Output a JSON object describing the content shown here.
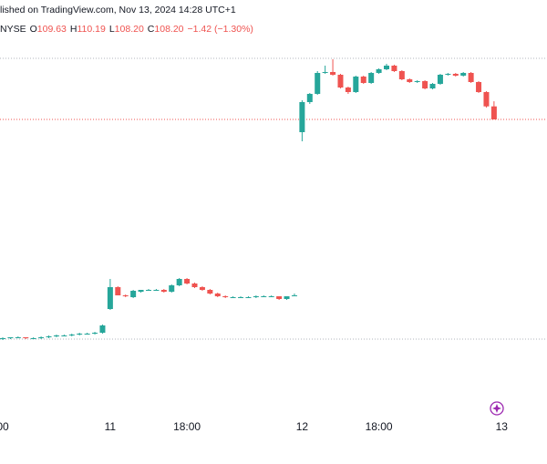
{
  "chart_data": {
    "type": "candlestick",
    "title": "lished on TradingView.com, Nov 13, 2024 14:28 UTC+1",
    "exchange": "NYSE",
    "legend_labels": [
      "O",
      "H",
      "L",
      "C"
    ],
    "legend_values": [
      "109.63",
      "110.19",
      "108.20",
      "108.20"
    ],
    "change": "−1.42 (−1.30%)",
    "up_color": "#26a69a",
    "down_color": "#ef5350",
    "ylim": [
      75.8,
      121.3
    ],
    "price_lines": [
      {
        "value": 114.9,
        "color": "#b2b5be"
      },
      {
        "value": 108.2,
        "color": "#ef5350"
      },
      {
        "value": 84.1,
        "color": "#b2b5be"
      }
    ],
    "categories": [
      "00",
      null,
      null,
      null,
      null,
      null,
      null,
      null,
      null,
      null,
      null,
      null,
      null,
      null,
      "11",
      null,
      null,
      null,
      null,
      null,
      null,
      null,
      null,
      null,
      "18:00",
      null,
      null,
      null,
      null,
      null,
      null,
      null,
      null,
      null,
      null,
      null,
      null,
      null,
      null,
      "12",
      null,
      null,
      null,
      null,
      null,
      null,
      null,
      null,
      null,
      "18:00",
      null,
      null,
      null,
      null,
      null,
      null,
      null,
      null,
      null,
      null,
      null,
      null,
      null,
      null,
      null,
      "13"
    ],
    "open": [
      84.1,
      84.2,
      84.3,
      84.3,
      84.2,
      84.2,
      84.3,
      84.4,
      84.5,
      84.5,
      84.6,
      84.7,
      84.7,
      84.8,
      87.4,
      89.8,
      88.9,
      88.7,
      89.3,
      89.5,
      89.5,
      89.5,
      89.3,
      90.0,
      90.7,
      90.2,
      89.8,
      89.5,
      89.1,
      88.8,
      88.7,
      88.7,
      88.7,
      88.7,
      88.8,
      88.8,
      88.8,
      88.5,
      88.9,
      106.8,
      110.1,
      111.0,
      113.3,
      113.4,
      113.1,
      111.7,
      111.2,
      112.9,
      112.2,
      113.3,
      113.7,
      114.1,
      113.5,
      112.6,
      112.3,
      112.4,
      111.6,
      112.1,
      113.1,
      113.2,
      113.0,
      113.3,
      112.3,
      111.2,
      109.63,
      null
    ],
    "high": [
      84.3,
      84.3,
      84.4,
      84.3,
      84.3,
      84.4,
      84.5,
      84.6,
      84.6,
      84.7,
      84.8,
      84.8,
      84.9,
      85.7,
      90.7,
      89.9,
      89.0,
      89.5,
      89.5,
      89.6,
      89.6,
      89.6,
      90.1,
      90.8,
      90.8,
      90.3,
      89.9,
      89.6,
      89.2,
      88.9,
      88.8,
      88.8,
      88.8,
      88.9,
      88.9,
      88.9,
      88.8,
      88.8,
      89.1,
      110.3,
      111.1,
      113.5,
      114.1,
      114.8,
      113.2,
      111.8,
      113.0,
      113.0,
      113.4,
      113.8,
      114.3,
      114.2,
      113.6,
      112.7,
      112.5,
      112.5,
      112.2,
      113.2,
      113.3,
      113.3,
      113.4,
      113.4,
      112.4,
      111.3,
      110.19,
      null
    ],
    "low": [
      84.0,
      84.1,
      84.2,
      84.1,
      84.1,
      84.1,
      84.2,
      84.3,
      84.4,
      84.4,
      84.5,
      84.6,
      84.6,
      84.7,
      87.3,
      88.9,
      88.7,
      88.6,
      89.2,
      89.4,
      89.4,
      89.2,
      89.2,
      89.9,
      90.1,
      89.7,
      89.4,
      89.0,
      88.7,
      88.6,
      88.6,
      88.6,
      88.6,
      88.6,
      88.7,
      88.7,
      88.4,
      88.4,
      88.8,
      105.8,
      109.9,
      110.9,
      113.2,
      113.0,
      111.6,
      111.0,
      111.1,
      112.1,
      112.1,
      113.2,
      113.6,
      113.4,
      112.5,
      112.2,
      112.2,
      111.5,
      111.5,
      112.0,
      113.0,
      112.9,
      112.9,
      112.2,
      111.1,
      109.5,
      108.2,
      null
    ],
    "close": [
      84.2,
      84.3,
      84.3,
      84.2,
      84.2,
      84.3,
      84.4,
      84.5,
      84.5,
      84.6,
      84.7,
      84.7,
      84.8,
      85.6,
      89.8,
      88.9,
      88.8,
      89.4,
      89.5,
      89.5,
      89.5,
      89.3,
      90.0,
      90.7,
      90.2,
      89.8,
      89.5,
      89.1,
      88.8,
      88.7,
      88.7,
      88.7,
      88.7,
      88.8,
      88.8,
      88.8,
      88.5,
      88.8,
      88.9,
      110.1,
      111.0,
      113.3,
      113.4,
      113.1,
      111.7,
      111.2,
      112.9,
      112.2,
      113.3,
      113.7,
      114.1,
      113.5,
      112.6,
      112.3,
      112.4,
      111.6,
      112.1,
      113.1,
      113.2,
      113.0,
      113.3,
      112.3,
      111.2,
      109.63,
      108.2,
      null
    ]
  }
}
